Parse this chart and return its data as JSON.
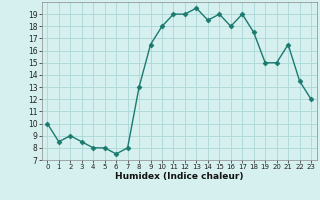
{
  "x": [
    0,
    1,
    2,
    3,
    4,
    5,
    6,
    7,
    8,
    9,
    10,
    11,
    12,
    13,
    14,
    15,
    16,
    17,
    18,
    19,
    20,
    21,
    22,
    23
  ],
  "y": [
    10,
    8.5,
    9,
    8.5,
    8,
    8,
    7.5,
    8,
    13,
    16.5,
    18,
    19,
    19,
    19.5,
    18.5,
    19,
    18,
    19,
    17.5,
    15,
    15,
    16.5,
    13.5,
    12
  ],
  "line_color": "#1a7a6e",
  "marker": "D",
  "marker_size": 2.5,
  "bg_color": "#d6f0f0",
  "grid_color": "#aad8d8",
  "xlabel": "Humidex (Indice chaleur)",
  "xlim": [
    -0.5,
    23.5
  ],
  "ylim": [
    7,
    20
  ],
  "yticks": [
    7,
    8,
    9,
    10,
    11,
    12,
    13,
    14,
    15,
    16,
    17,
    18,
    19
  ],
  "xticks": [
    0,
    1,
    2,
    3,
    4,
    5,
    6,
    7,
    8,
    9,
    10,
    11,
    12,
    13,
    14,
    15,
    16,
    17,
    18,
    19,
    20,
    21,
    22,
    23
  ]
}
